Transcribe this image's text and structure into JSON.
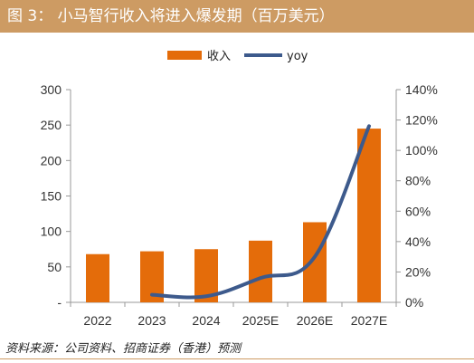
{
  "title": "图 3：  小马智行收入将进入爆发期（百万美元）",
  "source": "资料来源：公司资料、招商证券（香港）预测",
  "chart_data": {
    "type": "bar",
    "categories": [
      "2022",
      "2023",
      "2024",
      "2025E",
      "2026E",
      "2027E"
    ],
    "series": [
      {
        "name": "收入",
        "type": "bar",
        "axis": "left",
        "color": "#e46c0a",
        "values": [
          68,
          72,
          75,
          87,
          113,
          245
        ]
      },
      {
        "name": "yoy",
        "type": "line",
        "axis": "right",
        "color": "#3d5a8c",
        "values": [
          null,
          0.05,
          0.04,
          0.16,
          0.3,
          1.16
        ]
      }
    ],
    "y_left": {
      "range": [
        0,
        300
      ],
      "ticks": [
        "-",
        "50",
        "100",
        "150",
        "200",
        "250",
        "300"
      ]
    },
    "y_right": {
      "range": [
        0,
        1.4
      ],
      "ticks": [
        "0%",
        "20%",
        "40%",
        "60%",
        "80%",
        "100%",
        "120%",
        "140%"
      ]
    },
    "legend_position": "top",
    "grid": false
  }
}
